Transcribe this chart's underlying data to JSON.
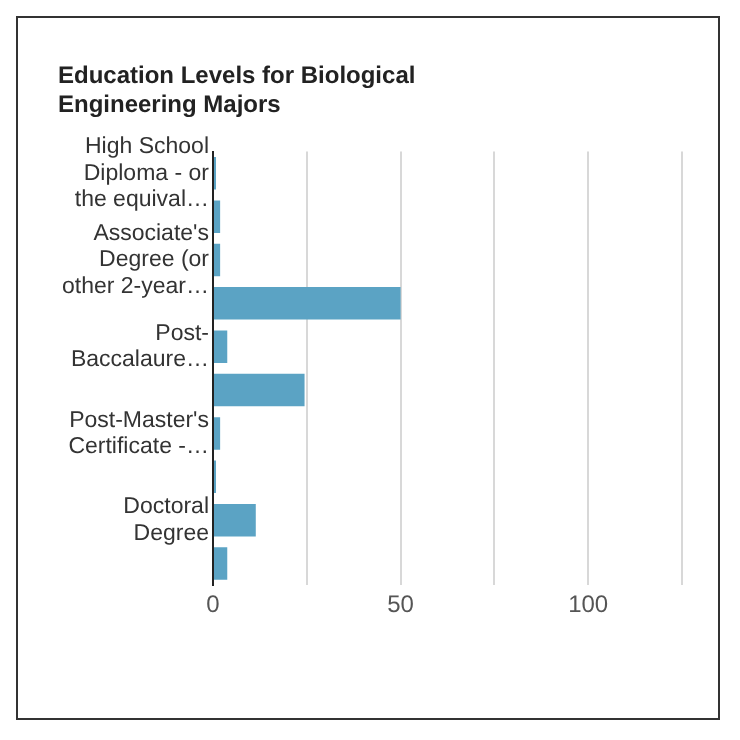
{
  "chart_data": {
    "type": "bar",
    "orientation": "horizontal",
    "title": "Education Levels for Biological Engineering Majors",
    "categories": [
      "High School Diploma - or the equival…",
      null,
      "Associate's Degree (or other 2-year…",
      null,
      "Post-Baccalaure…",
      null,
      "Post-Master's Certificate -…",
      null,
      "Doctoral Degree",
      null
    ],
    "values": [
      0.8,
      1.9,
      1.9,
      50,
      3.8,
      24.4,
      1.9,
      0.8,
      11.4,
      3.8
    ],
    "color": "#5ba3c4",
    "xlim": [
      0,
      125
    ],
    "xticks": [
      0,
      {
        "value": 25,
        "label": null
      },
      50,
      {
        "value": 75,
        "label": null
      },
      100,
      {
        "value": 125,
        "label": null
      }
    ],
    "grid": "x",
    "legend": false
  }
}
